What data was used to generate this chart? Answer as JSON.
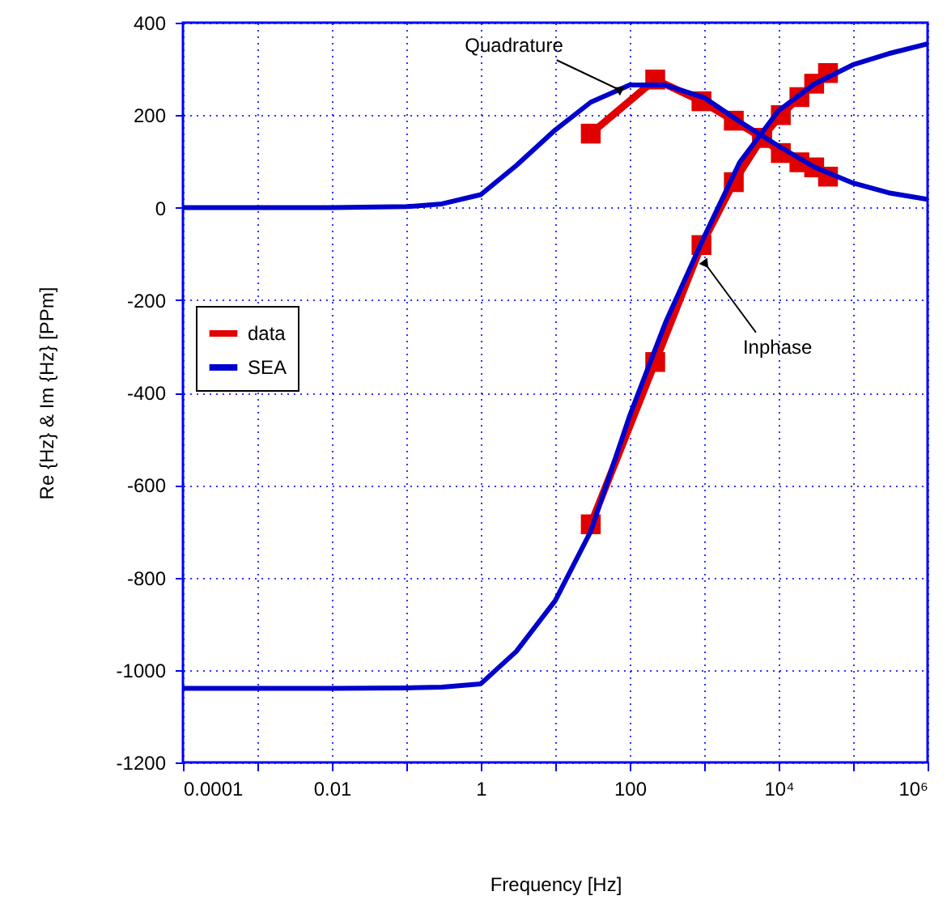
{
  "chart_data": {
    "type": "line",
    "xlabel": "Frequency [Hz]",
    "ylabel": "Re {Hz} & Im {Hz} [PPm]",
    "log": "x",
    "xlim": [
      0.0001,
      1000000
    ],
    "xticks": [
      {
        "value": 0.0001,
        "label": "0.0001"
      },
      {
        "value": 0.001,
        "label": null
      },
      {
        "value": 0.01,
        "label": "0.01"
      },
      {
        "value": 0.1,
        "label": null
      },
      {
        "value": 1,
        "label": "1"
      },
      {
        "value": 10,
        "label": null
      },
      {
        "value": 100,
        "label": "100"
      },
      {
        "value": 1000,
        "label": null
      },
      {
        "value": 10000,
        "label": "10⁴"
      },
      {
        "value": 100000,
        "label": null
      },
      {
        "value": 1000000,
        "label": "10⁶"
      }
    ],
    "ylim": [
      -1200,
      400
    ],
    "yticks": [
      -1200,
      -1000,
      -800,
      -600,
      -400,
      -200,
      0,
      200,
      400
    ],
    "grid": true,
    "legend": "left",
    "series": [
      {
        "name": "data",
        "color": "#e00000",
        "marker": "square",
        "x": [
          30,
          220,
          920,
          2500,
          6000,
          10700,
          19000,
          30000,
          46000
        ],
        "values": [
          -685,
          -334,
          -81,
          55,
          151,
          200,
          239,
          268,
          291
        ]
      },
      {
        "color": "#e00000",
        "marker": "square",
        "x": [
          30,
          220,
          920,
          2500,
          6000,
          10700,
          19000,
          30000,
          46000
        ],
        "values": [
          160,
          277,
          230,
          188,
          151,
          118,
          98,
          87,
          67
        ]
      },
      {
        "name": "SEA",
        "color": "#0000cc",
        "x": [
          0.0001,
          0.001,
          0.01,
          0.1,
          0.3,
          1,
          3,
          10,
          30,
          100,
          300,
          1000,
          3000,
          10000,
          30000,
          100000,
          300000,
          1000000
        ],
        "values": [
          -1040,
          -1040,
          -1040,
          -1039,
          -1037,
          -1030,
          -960,
          -850,
          -700,
          -450,
          -250,
          -63,
          98,
          210,
          267,
          309,
          333,
          354
        ]
      },
      {
        "color": "#0000cc",
        "x": [
          0.0001,
          0.001,
          0.01,
          0.1,
          0.3,
          1,
          3,
          10,
          30,
          100,
          300,
          1000,
          3000,
          10000,
          30000,
          100000,
          300000,
          1000000
        ],
        "values": [
          0,
          0,
          0,
          2,
          8,
          28,
          91,
          168,
          228,
          265,
          265,
          238,
          186,
          133,
          88,
          53,
          32,
          18
        ]
      }
    ],
    "annotations": [
      {
        "text": "Quadrature",
        "x": 70,
        "y": 256
      },
      {
        "text": "Inphase",
        "x": 1050,
        "y": -123
      }
    ]
  }
}
